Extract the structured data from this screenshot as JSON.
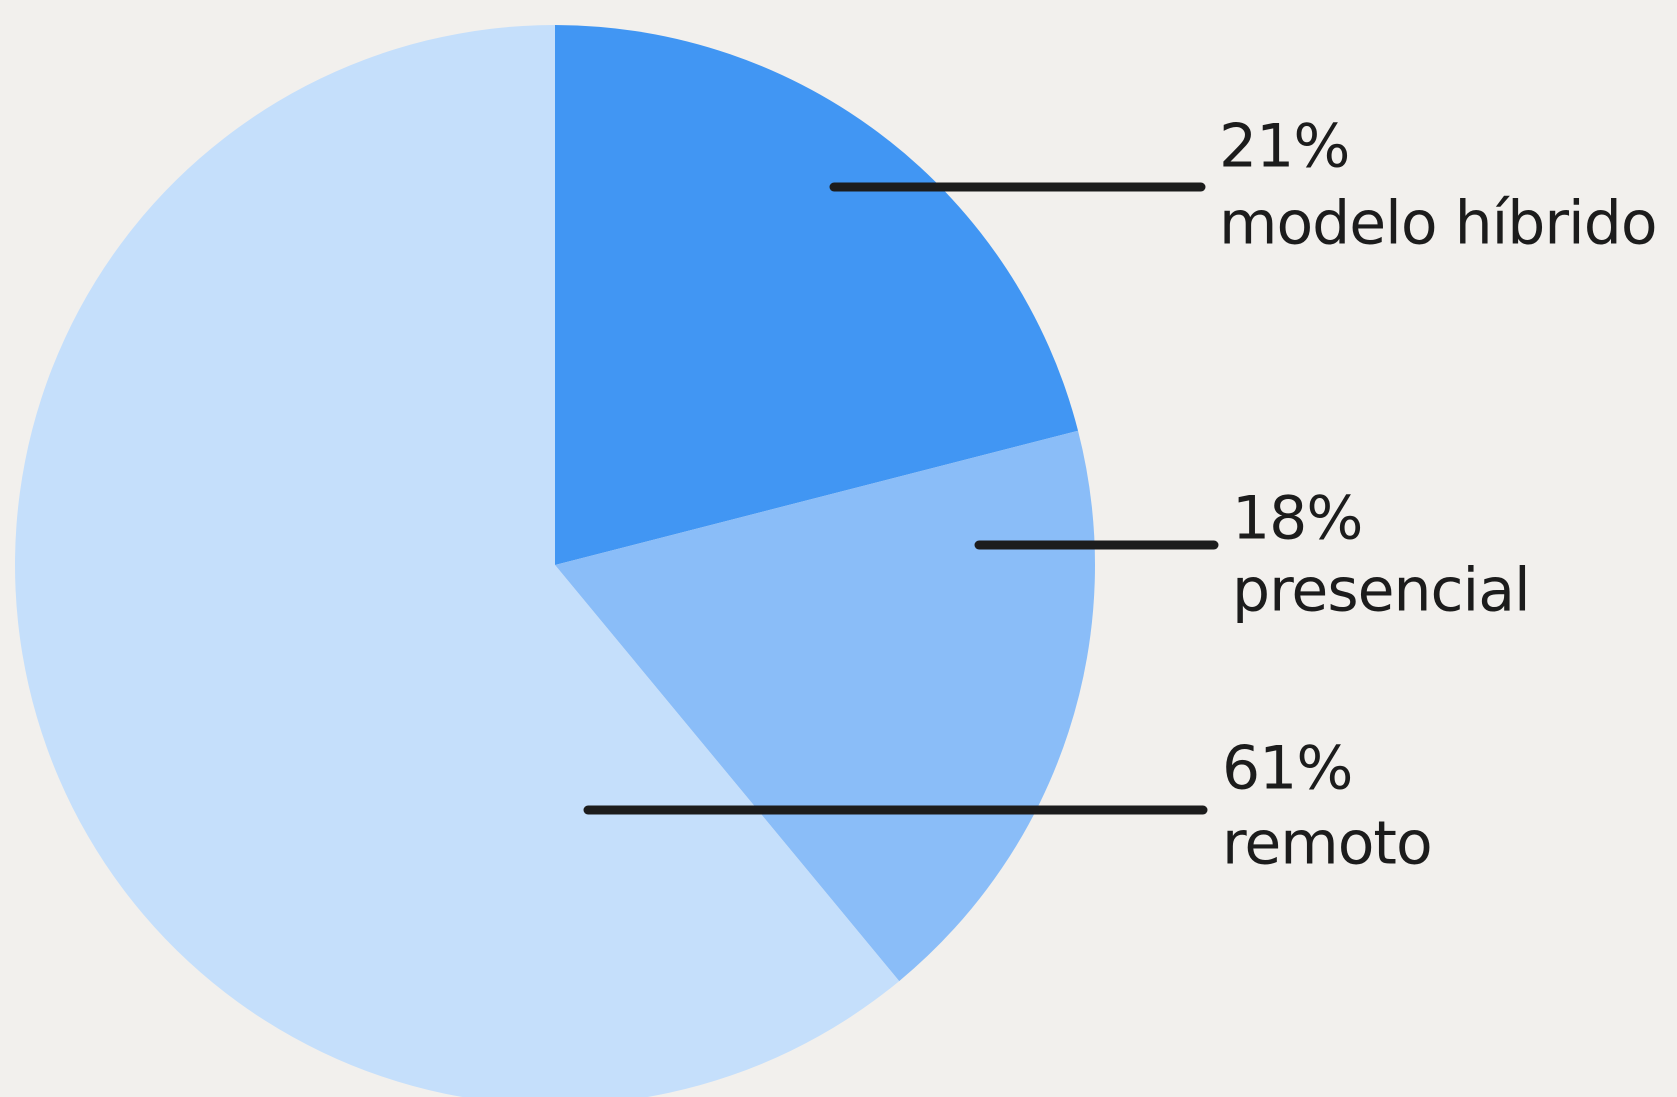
{
  "chart_data": {
    "type": "pie",
    "categories": [
      "modelo híbrido",
      "presencial",
      "remoto"
    ],
    "values": [
      21,
      18,
      61
    ],
    "value_labels": [
      "21%",
      "18%",
      "61%"
    ],
    "colors": [
      "#4196f3",
      "#8abdf8",
      "#c5dffb"
    ]
  }
}
